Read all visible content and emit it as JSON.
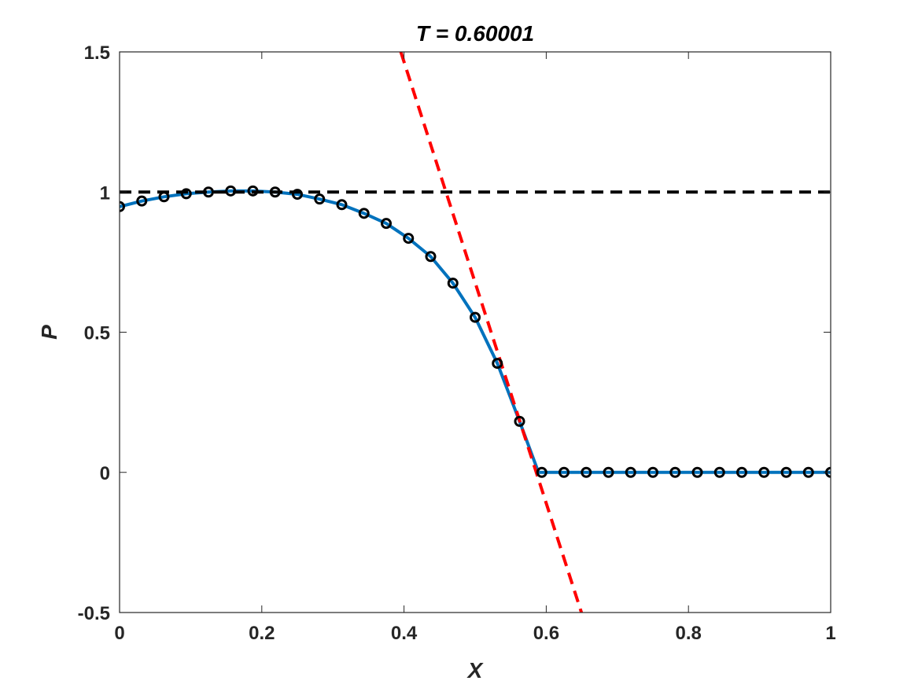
{
  "chart_data": {
    "type": "line",
    "title": "T = 0.60001",
    "xlabel": "X",
    "ylabel": "P",
    "xlim": [
      0,
      1
    ],
    "ylim": [
      -0.5,
      1.5
    ],
    "xticks": [
      0,
      0.2,
      0.4,
      0.6,
      0.8,
      1
    ],
    "xtick_labels": [
      "0",
      "0.2",
      "0.4",
      "0.6",
      "0.8",
      "1"
    ],
    "yticks": [
      -0.5,
      0,
      0.5,
      1,
      1.5
    ],
    "ytick_labels": [
      "-0.5",
      "0",
      "0.5",
      "1",
      "1.5"
    ],
    "grid": false,
    "box": true,
    "series": [
      {
        "style": "solid-line",
        "color": "#0072BD",
        "x": [
          0,
          0.03125,
          0.0625,
          0.09375,
          0.125,
          0.15625,
          0.1875,
          0.21875,
          0.25,
          0.28125,
          0.3125,
          0.34375,
          0.375,
          0.40625,
          0.4375,
          0.46875,
          0.5,
          0.53125,
          0.5625,
          0.5891,
          0.59375,
          0.625,
          0.65625,
          0.6875,
          0.71875,
          0.75,
          0.78125,
          0.8125,
          0.84375,
          0.875,
          0.90625,
          0.9375,
          0.96875,
          1
        ],
        "y": [
          0.948,
          0.968,
          0.983,
          0.994,
          1.0,
          1.004,
          1.004,
          1.0,
          0.992,
          0.975,
          0.955,
          0.924,
          0.888,
          0.835,
          0.77,
          0.675,
          0.553,
          0.389,
          0.182,
          0.0,
          0,
          0,
          0,
          0,
          0,
          0,
          0,
          0,
          0,
          0,
          0,
          0,
          0,
          0
        ]
      },
      {
        "style": "circle-markers",
        "color": "#000000",
        "x": [
          0,
          0.03125,
          0.0625,
          0.09375,
          0.125,
          0.15625,
          0.1875,
          0.21875,
          0.25,
          0.28125,
          0.3125,
          0.34375,
          0.375,
          0.40625,
          0.4375,
          0.46875,
          0.5,
          0.53125,
          0.5625,
          0.59375,
          0.625,
          0.65625,
          0.6875,
          0.71875,
          0.75,
          0.78125,
          0.8125,
          0.84375,
          0.875,
          0.90625,
          0.9375,
          0.96875,
          1
        ],
        "y": [
          0.948,
          0.968,
          0.983,
          0.994,
          1.0,
          1.004,
          1.004,
          1.0,
          0.992,
          0.975,
          0.955,
          0.924,
          0.888,
          0.835,
          0.77,
          0.675,
          0.553,
          0.389,
          0.182,
          0,
          0,
          0,
          0,
          0,
          0,
          0,
          0,
          0,
          0,
          0,
          0,
          0,
          0
        ]
      },
      {
        "style": "dashed-line",
        "color": "#000000",
        "x": [
          0,
          1
        ],
        "y": [
          1,
          1
        ]
      },
      {
        "style": "dashed-line",
        "color": "#FF0000",
        "x": [
          0.3955,
          0.6495
        ],
        "y": [
          1.5,
          -0.5
        ]
      }
    ]
  }
}
